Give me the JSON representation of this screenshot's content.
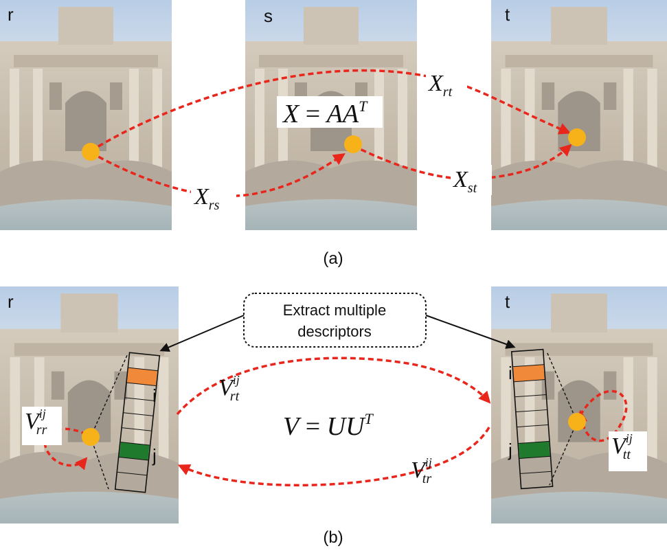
{
  "panel_a": {
    "caption": "(a)",
    "photo_labels": {
      "r": "r",
      "s": "s",
      "t": "t"
    },
    "equation": {
      "lhs": "X",
      "eq": " = ",
      "rhs": "AA",
      "sup": "T"
    },
    "edges": {
      "rs": {
        "base": "X",
        "sub": "rs"
      },
      "rt": {
        "base": "X",
        "sub": "rt"
      },
      "st": {
        "base": "X",
        "sub": "st"
      }
    }
  },
  "panel_b": {
    "caption": "(b)",
    "photo_labels": {
      "r": "r",
      "t": "t"
    },
    "callout": {
      "line1": "Extract multiple",
      "line2": "descriptors"
    },
    "equation": {
      "lhs": "V",
      "eq": " = ",
      "rhs": "UU",
      "sup": "T"
    },
    "descriptor_labels": {
      "i": "i",
      "j": "j"
    },
    "edges": {
      "rr": {
        "base": "V",
        "sup": "ij",
        "sub": "rr"
      },
      "rt": {
        "base": "V",
        "sup": "ij",
        "sub": "rt"
      },
      "tr": {
        "base": "V",
        "sup": "ij",
        "sub": "tr"
      },
      "tt": {
        "base": "V",
        "sup": "ij",
        "sub": "tt"
      }
    }
  },
  "colors": {
    "arrow": "#e8261c",
    "keypoint": "#f7b21a",
    "cell_i": "#f08a3a",
    "cell_j": "#1f7a2e",
    "sky": "#c9d9ec",
    "stone": "#c8beb0"
  }
}
